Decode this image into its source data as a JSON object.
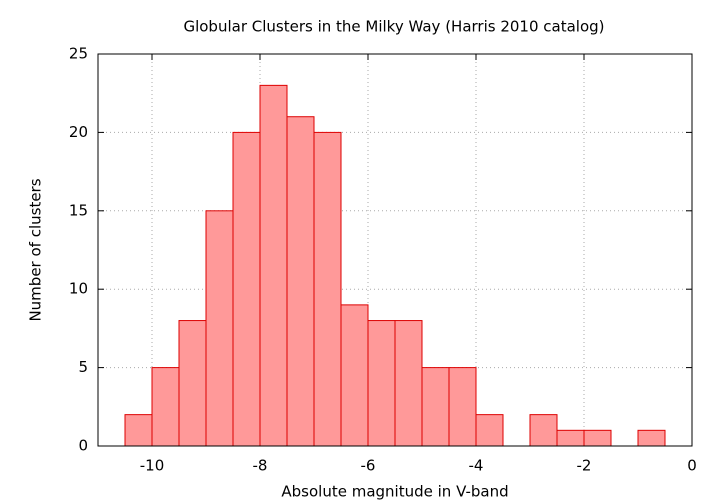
{
  "chart_data": {
    "type": "histogram",
    "title": "Globular Clusters in the Milky Way (Harris 2010 catalog)",
    "x_label": "Absolute magnitude in V-band",
    "y_label": "Number of clusters",
    "bins": [
      -10.5,
      -10,
      -9.5,
      -9,
      -8.5,
      -8,
      -7.5,
      -7,
      -6.5,
      -6,
      -5.5,
      -5,
      -4.5,
      -4,
      -3.5,
      -3,
      -2.5,
      -2,
      -1.5,
      -1,
      -0.5
    ],
    "values": [
      2,
      5,
      8,
      15,
      20,
      23,
      21,
      20,
      9,
      8,
      8,
      5,
      5,
      2,
      0,
      2,
      1,
      1,
      0,
      1
    ],
    "color": "#ff9999",
    "edge_color": "#dd0000",
    "xlim": [
      -11,
      0
    ],
    "xticks": [
      -10,
      -8,
      -6,
      -4,
      -2,
      0
    ],
    "ylim": [
      0,
      25
    ],
    "yticks": [
      0,
      5,
      10,
      15,
      20,
      25
    ],
    "grid": true
  }
}
